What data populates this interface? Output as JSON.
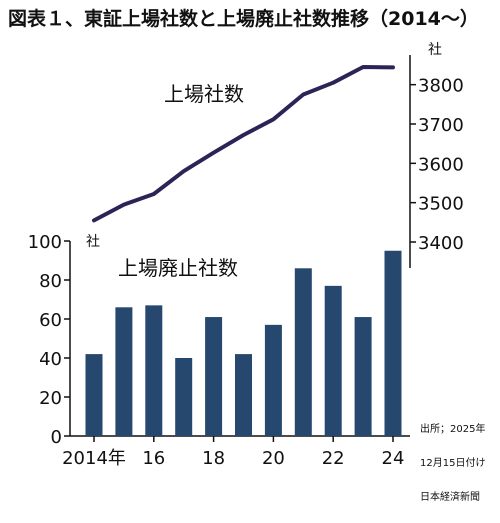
{
  "title": "図表１、東証上場社数と上場廃止社数推移（2014〜）",
  "source": [
    "出所；2025年",
    "12月15日付け",
    "日本経済新聞"
  ],
  "chart_data": [
    {
      "type": "line",
      "series_label": "上場社数",
      "unit_label": "社",
      "ylim": [
        3400,
        3850
      ],
      "yticks": [
        3400,
        3500,
        3600,
        3700,
        3800
      ],
      "line_color": "#2b2456",
      "x": [
        2014,
        2015,
        2016,
        2017,
        2018,
        2019,
        2020,
        2021,
        2022,
        2023,
        2024
      ],
      "values": [
        3455,
        3495,
        3522,
        3580,
        3627,
        3672,
        3712,
        3775,
        3805,
        3845,
        3844
      ]
    },
    {
      "type": "bar",
      "series_label": "上場廃止社数",
      "unit_label": "社",
      "ylim": [
        0,
        100
      ],
      "yticks": [
        0,
        20,
        40,
        60,
        80,
        100
      ],
      "bar_color": "#26476e",
      "categories": [
        2014,
        2015,
        2016,
        2017,
        2018,
        2019,
        2020,
        2021,
        2022,
        2023,
        2024
      ],
      "values": [
        42,
        66,
        67,
        40,
        61,
        42,
        57,
        86,
        77,
        61,
        95
      ],
      "xtick_labels": [
        {
          "x": 2014,
          "label": "2014年"
        },
        {
          "x": 2016,
          "label": "16"
        },
        {
          "x": 2018,
          "label": "18"
        },
        {
          "x": 2020,
          "label": "20"
        },
        {
          "x": 2022,
          "label": "22"
        },
        {
          "x": 2024,
          "label": "24"
        }
      ]
    }
  ]
}
